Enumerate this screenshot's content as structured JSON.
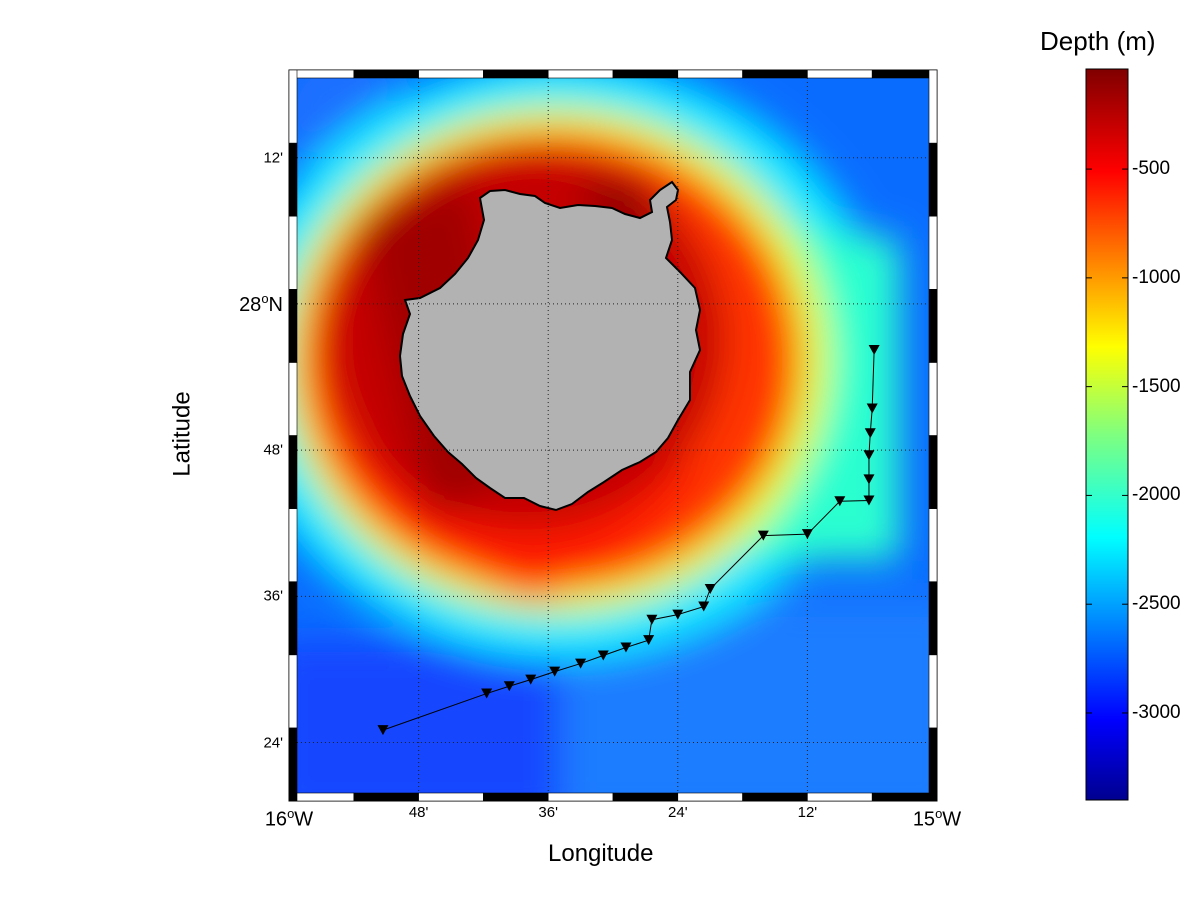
{
  "map": {
    "xlabel": "Longitude",
    "ylabel": "Latitude",
    "longitude_ticks": [
      {
        "deg": 16,
        "min": 0,
        "label": "16",
        "sup": "o",
        "suffix": "W",
        "big": true
      },
      {
        "deg": 15,
        "min": 48,
        "label": "48'",
        "big": false
      },
      {
        "deg": 15,
        "min": 36,
        "label": "36'",
        "big": false
      },
      {
        "deg": 15,
        "min": 24,
        "label": "24'",
        "big": false
      },
      {
        "deg": 15,
        "min": 12,
        "label": "12'",
        "big": false
      },
      {
        "deg": 15,
        "min": 0,
        "label": "15",
        "sup": "o",
        "suffix": "W",
        "big": true
      }
    ],
    "latitude_ticks": [
      {
        "deg": 28,
        "min": 12,
        "label": "12'",
        "big": false
      },
      {
        "deg": 28,
        "min": 0,
        "label": "28",
        "sup": "o",
        "suffix": "N",
        "big": true
      },
      {
        "deg": 27,
        "min": 48,
        "label": "48'",
        "big": false
      },
      {
        "deg": 27,
        "min": 36,
        "label": "36'",
        "big": false
      },
      {
        "deg": 27,
        "min": 24,
        "label": "24'",
        "big": false
      }
    ],
    "extent": {
      "lon_west": -16.0,
      "lon_east": -15.0,
      "lat_south": 27.32,
      "lat_north": 28.32
    },
    "grid": true,
    "land_color": "#b2b2b2",
    "track_color": "#000000",
    "colorbar": {
      "title": "Depth (m)",
      "range": [
        -3400,
        -40
      ],
      "ticks": [
        {
          "value": -500,
          "label": "-500"
        },
        {
          "value": -1000,
          "label": "-1000"
        },
        {
          "value": -1500,
          "label": "-1500"
        },
        {
          "value": -2000,
          "label": "-2000"
        },
        {
          "value": -2500,
          "label": "-2500"
        },
        {
          "value": -3000,
          "label": "-3000"
        }
      ],
      "colormap": "jet"
    },
    "stations": [
      {
        "lon": -15.855,
        "lat": 27.417
      },
      {
        "lon": -15.695,
        "lat": 27.467
      },
      {
        "lon": -15.66,
        "lat": 27.477
      },
      {
        "lon": -15.627,
        "lat": 27.486
      },
      {
        "lon": -15.59,
        "lat": 27.497
      },
      {
        "lon": -15.55,
        "lat": 27.508
      },
      {
        "lon": -15.515,
        "lat": 27.519
      },
      {
        "lon": -15.48,
        "lat": 27.53
      },
      {
        "lon": -15.445,
        "lat": 27.54
      },
      {
        "lon": -15.44,
        "lat": 27.568
      },
      {
        "lon": -15.4,
        "lat": 27.575
      },
      {
        "lon": -15.36,
        "lat": 27.586
      },
      {
        "lon": -15.35,
        "lat": 27.61
      },
      {
        "lon": -15.268,
        "lat": 27.683
      },
      {
        "lon": -15.2,
        "lat": 27.685
      },
      {
        "lon": -15.15,
        "lat": 27.73
      },
      {
        "lon": -15.105,
        "lat": 27.731
      },
      {
        "lon": -15.105,
        "lat": 27.76
      },
      {
        "lon": -15.105,
        "lat": 27.793
      },
      {
        "lon": -15.103,
        "lat": 27.823
      },
      {
        "lon": -15.1,
        "lat": 27.857
      },
      {
        "lon": -15.097,
        "lat": 27.937
      }
    ]
  }
}
